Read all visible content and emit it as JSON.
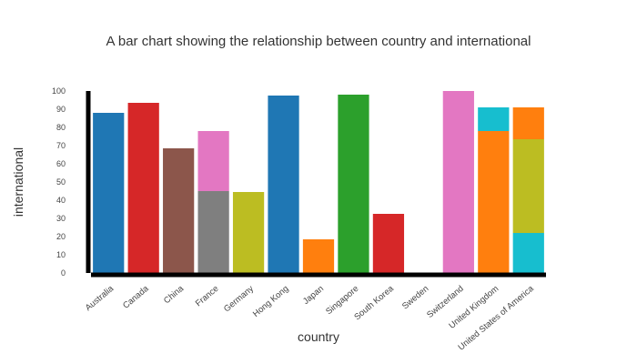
{
  "chart_data": {
    "type": "bar",
    "stacked": true,
    "title": "A bar chart showing the relationship between country and international",
    "xlabel": "country",
    "ylabel": "international",
    "ylim": [
      0,
      100
    ],
    "yticks": [
      0,
      10,
      20,
      30,
      40,
      50,
      60,
      70,
      80,
      90,
      100
    ],
    "grid": false,
    "legend": "none",
    "categories": [
      "Australia",
      "Canada",
      "China",
      "France",
      "Germany",
      "Hong Kong",
      "Japan",
      "Singapore",
      "South Korea",
      "Sweden",
      "Switzerland",
      "United Kingdom",
      "United States of America"
    ],
    "bars": [
      {
        "category": "Australia",
        "segments": [
          {
            "value": 88,
            "color": "#1f77b4"
          }
        ]
      },
      {
        "category": "Canada",
        "segments": [
          {
            "value": 93.5,
            "color": "#d62728"
          }
        ]
      },
      {
        "category": "China",
        "segments": [
          {
            "value": 68.5,
            "color": "#8c564b"
          }
        ]
      },
      {
        "category": "France",
        "segments": [
          {
            "value": 45,
            "color": "#7f7f7f"
          },
          {
            "value": 33,
            "color": "#e377c2"
          }
        ]
      },
      {
        "category": "Germany",
        "segments": [
          {
            "value": 44.5,
            "color": "#bcbd22"
          }
        ]
      },
      {
        "category": "Hong Kong",
        "segments": [
          {
            "value": 97.5,
            "color": "#1f77b4"
          }
        ]
      },
      {
        "category": "Japan",
        "segments": [
          {
            "value": 18.5,
            "color": "#ff7f0e"
          }
        ]
      },
      {
        "category": "Singapore",
        "segments": [
          {
            "value": 98,
            "color": "#2ca02c"
          }
        ]
      },
      {
        "category": "South Korea",
        "segments": [
          {
            "value": 32.5,
            "color": "#d62728"
          }
        ]
      },
      {
        "category": "Sweden",
        "segments": []
      },
      {
        "category": "Switzerland",
        "segments": [
          {
            "value": 100,
            "color": "#e377c2"
          }
        ]
      },
      {
        "category": "United Kingdom",
        "segments": [
          {
            "value": 78,
            "color": "#ff7f0e"
          },
          {
            "value": 13,
            "color": "#17becf"
          }
        ]
      },
      {
        "category": "United States of America",
        "segments": [
          {
            "value": 22,
            "color": "#17becf"
          },
          {
            "value": 51.5,
            "color": "#bcbd22"
          },
          {
            "value": 17.5,
            "color": "#ff7f0e"
          }
        ]
      }
    ]
  }
}
